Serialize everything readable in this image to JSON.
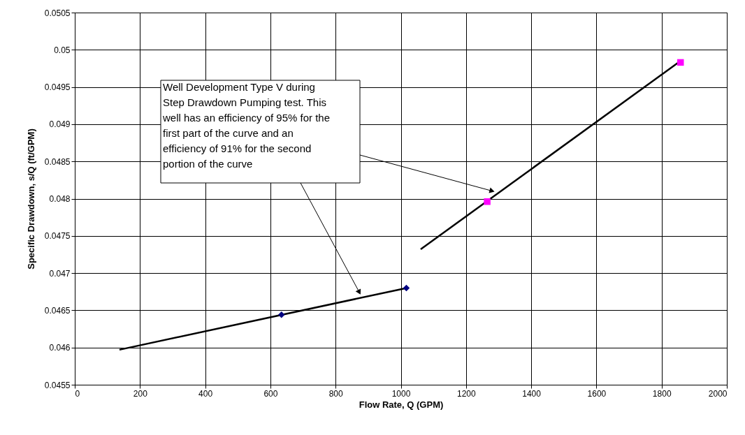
{
  "chart_data": {
    "type": "scatter",
    "xlabel": "Flow Rate, Q (GPM)",
    "ylabel": "Specific Drawdown, s/Q (ft/GPM)",
    "xlim": [
      0,
      2000
    ],
    "xticks": [
      0,
      200,
      400,
      600,
      800,
      1000,
      1200,
      1400,
      1600,
      1800,
      2000
    ],
    "ylim": [
      0.0455,
      0.0505
    ],
    "yticks": [
      0.0455,
      0.046,
      0.0465,
      0.047,
      0.0475,
      0.048,
      0.0485,
      0.049,
      0.0495,
      0.05,
      0.0505
    ],
    "grid": true,
    "series": [
      {
        "type": "line",
        "color": "#000000",
        "x": [
          137,
          1018
        ],
        "values": [
          0.04597,
          0.0468
        ],
        "marker": "none",
        "line_style": "solid"
      },
      {
        "type": "line",
        "color": "#000000",
        "x": [
          1061,
          1858
        ],
        "values": [
          0.04732,
          0.04985
        ],
        "marker": "none",
        "line_style": "solid"
      },
      {
        "type": "scatter",
        "color": "#000080",
        "x": [
          634,
          1017
        ],
        "values": [
          0.04644,
          0.0468
        ],
        "marker": "diamond"
      },
      {
        "type": "scatter",
        "color": "#ff00ff",
        "x": [
          1265,
          1858
        ],
        "values": [
          0.04796,
          0.04983
        ],
        "marker": "square"
      }
    ],
    "annotations": [
      "Well Development Type V during\nStep Drawdown Pumping test. This\nwell has an efficiency of 95% for the\nfirst part of the curve and an\nefficiency of 91% for the second\nportion of the curve"
    ]
  }
}
